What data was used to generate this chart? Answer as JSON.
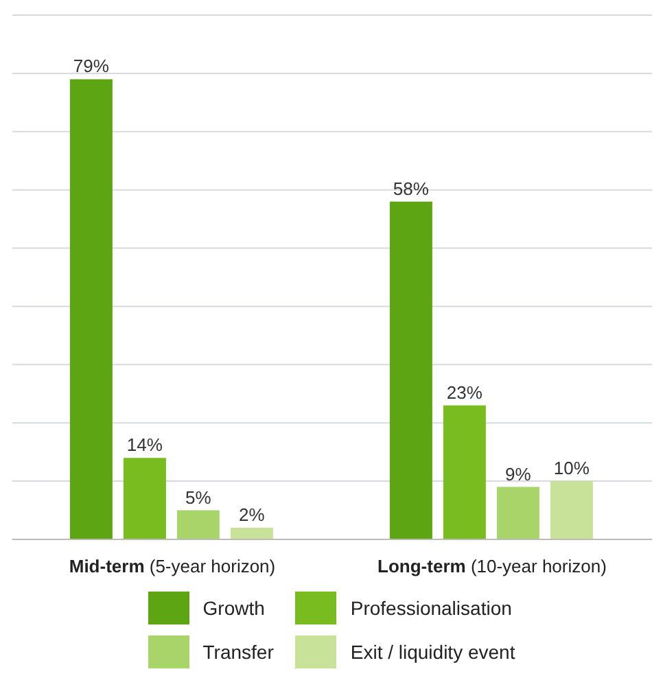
{
  "chart_data": {
    "type": "bar",
    "categories": [
      "Mid-term (5-year horizon)",
      "Long-term (10-year horizon)"
    ],
    "series": [
      {
        "name": "Growth",
        "color": "#5ea514",
        "values": [
          79,
          58
        ],
        "value_labels": [
          "79%",
          "58%"
        ]
      },
      {
        "name": "Professionalisation",
        "color": "#78bc20",
        "values": [
          14,
          23
        ],
        "value_labels": [
          "14%",
          "23%"
        ]
      },
      {
        "name": "Transfer",
        "color": "#a8d46a",
        "values": [
          5,
          9
        ],
        "value_labels": [
          "5%",
          "9%"
        ]
      },
      {
        "name": "Exit / liquidity event",
        "color": "#c8e29a",
        "values": [
          2,
          10
        ],
        "value_labels": [
          "2%",
          "10%"
        ]
      }
    ],
    "ylim": [
      0,
      90
    ],
    "yticks": [
      {
        "value": 0,
        "label": null
      },
      {
        "value": 10,
        "label": null
      },
      {
        "value": 20,
        "label": null
      },
      {
        "value": 30,
        "label": null
      },
      {
        "value": 40,
        "label": null
      },
      {
        "value": 50,
        "label": null
      },
      {
        "value": 60,
        "label": null
      },
      {
        "value": 70,
        "label": null
      },
      {
        "value": 80,
        "label": null
      },
      {
        "value": 90,
        "label": null
      }
    ],
    "tick_labels": "x",
    "grid": "y",
    "legend": "bottom"
  }
}
